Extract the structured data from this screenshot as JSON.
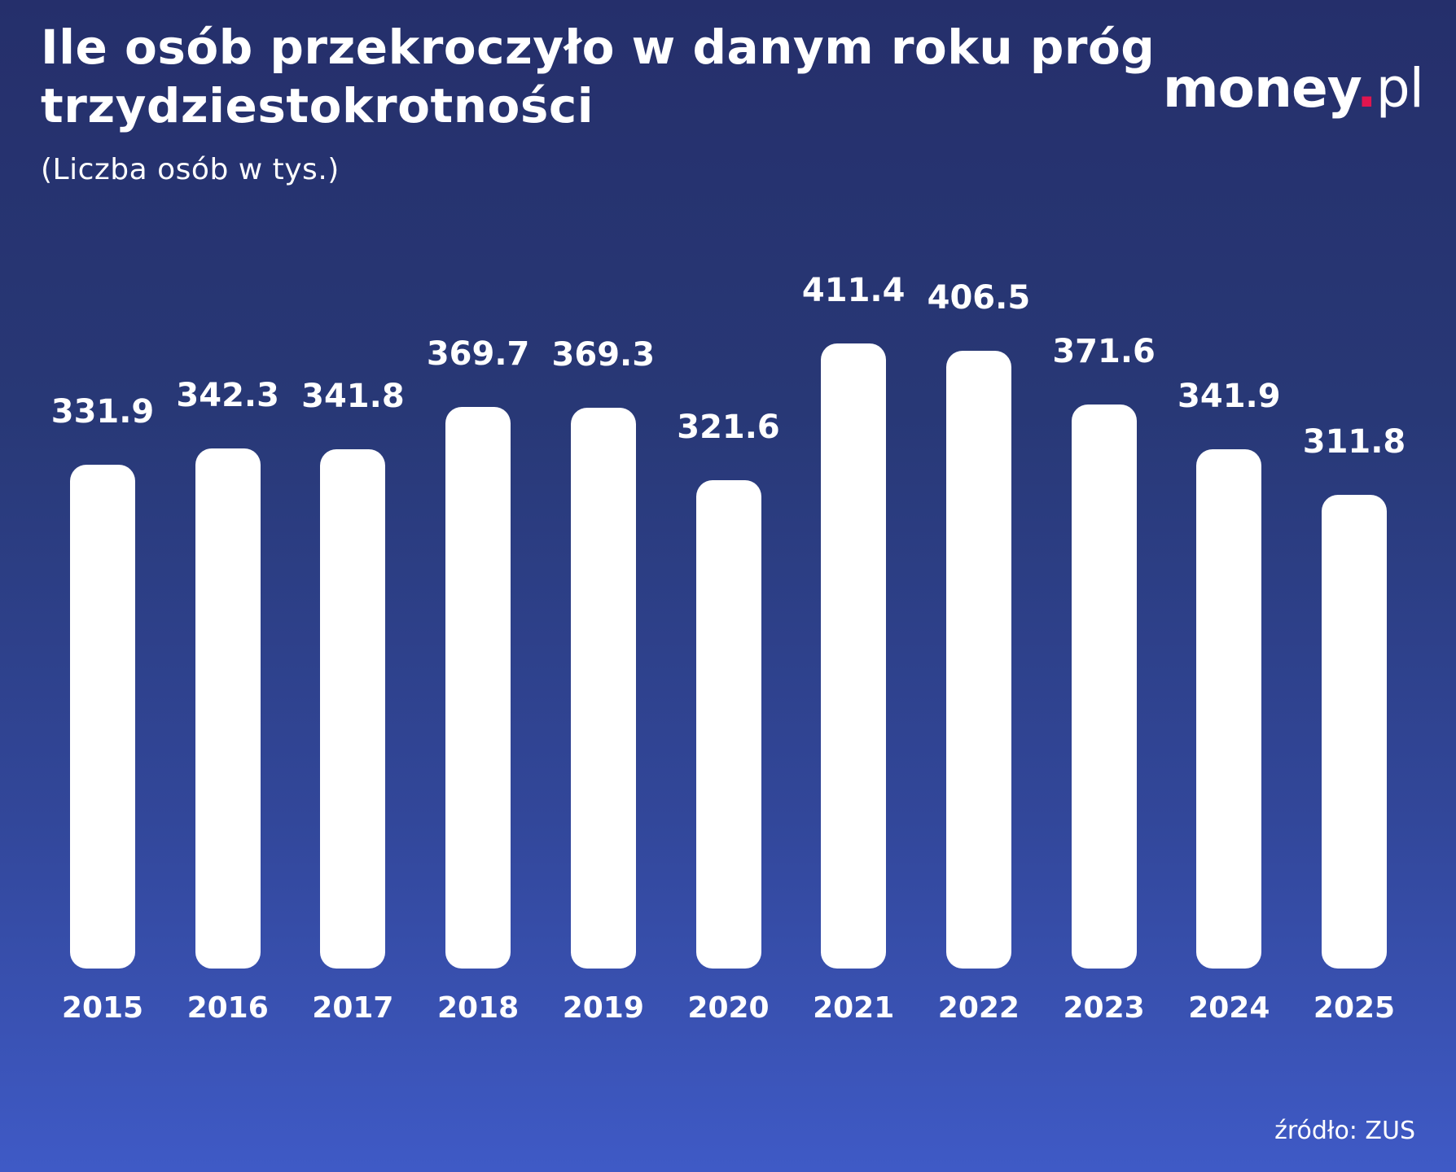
{
  "header": {
    "title": "Ile osób przekroczyło w danym roku próg trzydziestokrotności",
    "subtitle": "(Liczba osób w tys.)"
  },
  "logo": {
    "name": "money",
    "dot": ".",
    "tld": "pl"
  },
  "footer": {
    "source": "źródło: ZUS"
  },
  "colors": {
    "background_top": "#252f6b",
    "background_bottom": "#3f5ac6",
    "bar": "#ffffff",
    "logo_dot": "#e0154f"
  },
  "chart_data": {
    "type": "bar",
    "title": "Ile osób przekroczyło w danym roku próg trzydziestokrotności",
    "subtitle": "(Liczba osób w tys.)",
    "xlabel": "",
    "ylabel": "Liczba osób w tys.",
    "categories": [
      "2015",
      "2016",
      "2017",
      "2018",
      "2019",
      "2020",
      "2021",
      "2022",
      "2023",
      "2024",
      "2025"
    ],
    "values": [
      331.9,
      342.3,
      341.8,
      369.7,
      369.3,
      321.6,
      411.4,
      406.5,
      371.6,
      341.9,
      311.8
    ],
    "value_labels": [
      "331.9",
      "342.3",
      "341.8",
      "369.7",
      "369.3",
      "321.6",
      "411.4",
      "406.5",
      "371.6",
      "341.9",
      "311.8"
    ],
    "grid": false,
    "legend": null,
    "source": "źródło: ZUS"
  }
}
